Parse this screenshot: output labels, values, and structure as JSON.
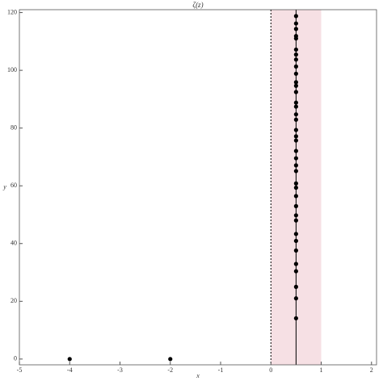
{
  "chart_data": {
    "type": "scatter",
    "title": "ζ(z)",
    "x_label": "x",
    "y_label": "y",
    "xlim": [
      -5,
      2.1
    ],
    "ylim": [
      -2,
      121
    ],
    "xticks": [
      -5,
      -4,
      -3,
      -2,
      -1,
      0,
      1,
      2
    ],
    "yticks": [
      0,
      20,
      40,
      60,
      80,
      100,
      120
    ],
    "critical_strip": [
      0,
      1
    ],
    "strip_color": "#f6e0e4",
    "critical_line": 0.5,
    "dashed_line": 0,
    "series": [
      {
        "color": "#000000",
        "x": [
          -4,
          -2,
          0.5,
          0.5,
          0.5,
          0.5,
          0.5,
          0.5,
          0.5,
          0.5,
          0.5,
          0.5,
          0.5,
          0.5,
          0.5,
          0.5,
          0.5,
          0.5,
          0.5,
          0.5,
          0.5,
          0.5,
          0.5,
          0.5,
          0.5,
          0.5,
          0.5,
          0.5,
          0.5,
          0.5,
          0.5,
          0.5,
          0.5,
          0.5,
          0.5,
          0.5,
          0.5,
          0.5,
          0.5,
          0.5
        ],
        "values": [
          0,
          0,
          14.13,
          21.02,
          25.01,
          30.42,
          32.94,
          37.59,
          40.92,
          43.33,
          48.01,
          49.77,
          52.97,
          56.45,
          59.35,
          60.83,
          65.11,
          67.08,
          69.55,
          72.07,
          75.7,
          77.14,
          79.34,
          82.91,
          84.74,
          87.43,
          88.81,
          92.49,
          94.65,
          95.87,
          98.83,
          101.32,
          103.73,
          105.45,
          107.17,
          111.03,
          111.87,
          114.32,
          116.23,
          118.79
        ]
      }
    ]
  }
}
